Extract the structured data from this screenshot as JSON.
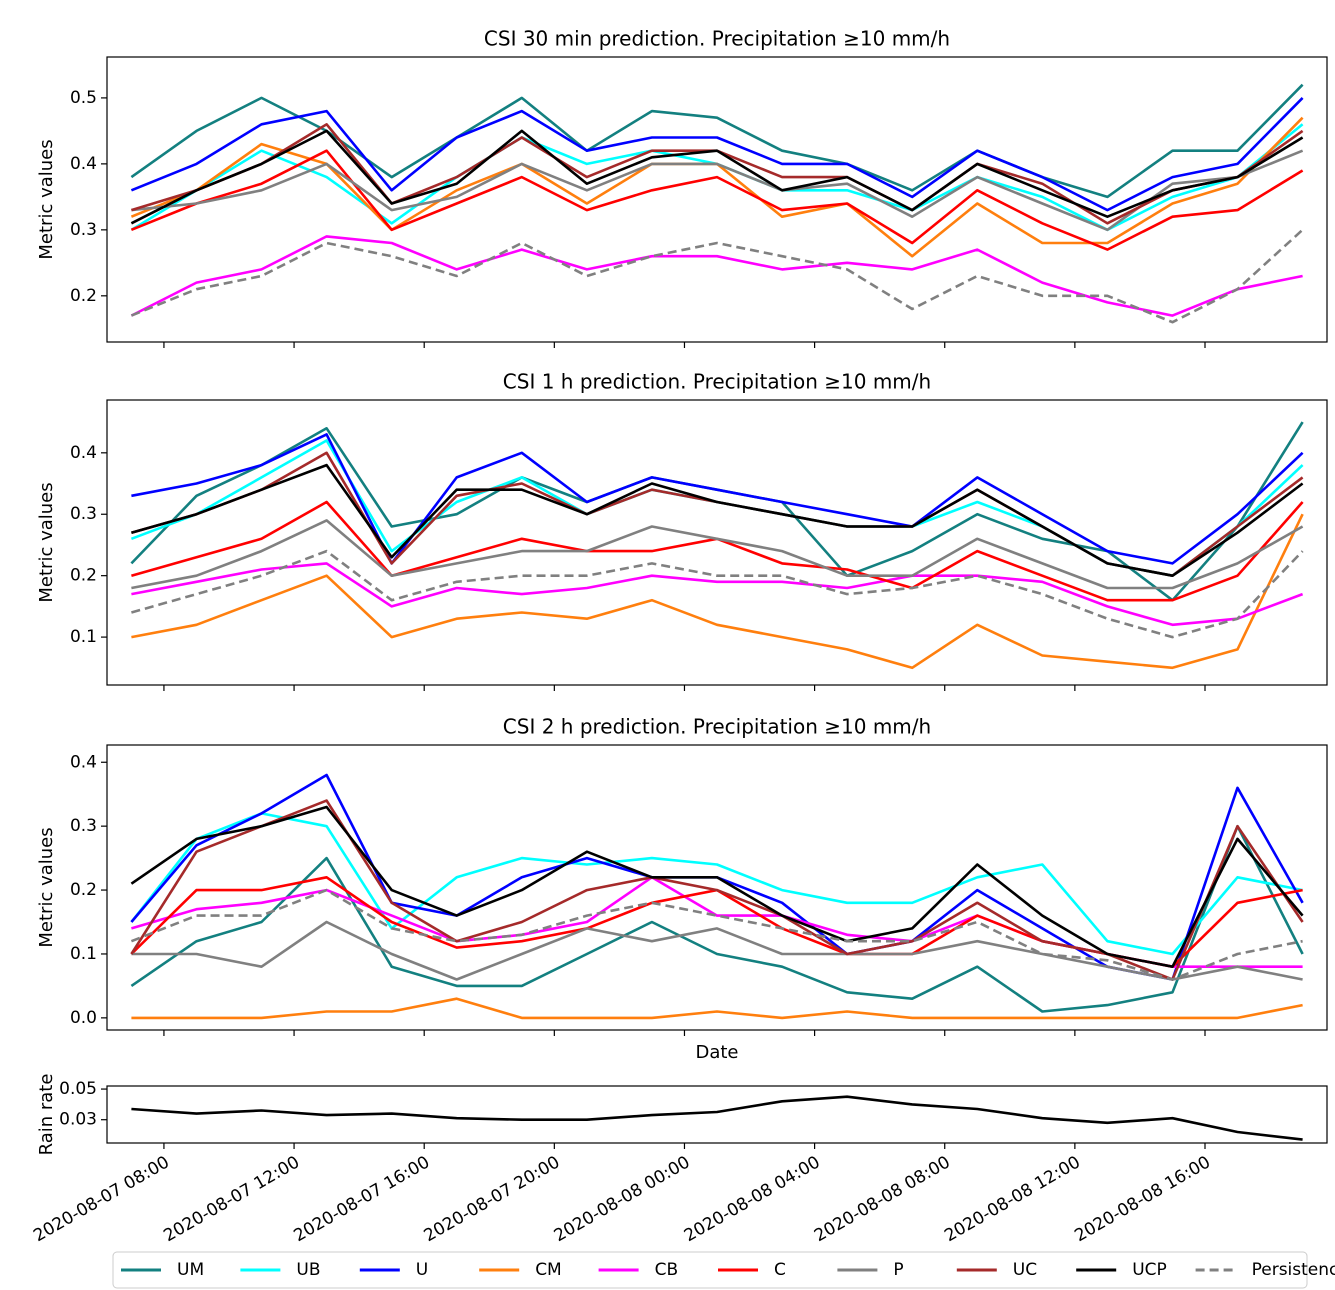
{
  "chart_data": [
    {
      "type": "line",
      "title": "CSI 30 min prediction. Precipitation  ≥10 mm/h",
      "ylabel": "Metric values",
      "legend": "bottom",
      "x": [
        "2020-08-07 07:00",
        "2020-08-07 09:00",
        "2020-08-07 11:00",
        "2020-08-07 13:00",
        "2020-08-07 15:00",
        "2020-08-07 17:00",
        "2020-08-07 19:00",
        "2020-08-07 21:00",
        "2020-08-07 23:00",
        "2020-08-08 01:00",
        "2020-08-08 03:00",
        "2020-08-08 05:00",
        "2020-08-08 07:00",
        "2020-08-08 09:00",
        "2020-08-08 11:00",
        "2020-08-08 13:00",
        "2020-08-08 15:00",
        "2020-08-08 17:00",
        "2020-08-08 19:00"
      ],
      "xlim": [
        "2020-08-07 06:15",
        "2020-08-08 19:45"
      ],
      "xticks": [
        "2020-08-07 08:00",
        "2020-08-07 12:00",
        "2020-08-07 16:00",
        "2020-08-07 20:00",
        "2020-08-08 00:00",
        "2020-08-08 04:00",
        "2020-08-08 08:00",
        "2020-08-08 12:00",
        "2020-08-08 16:00"
      ],
      "ylim": [
        0.13,
        0.562
      ],
      "yticks": [
        0.2,
        0.3,
        0.4,
        0.5
      ],
      "series": [
        {
          "name": "UM",
          "color": "#138080",
          "values": [
            0.38,
            0.45,
            0.5,
            0.45,
            0.38,
            0.44,
            0.5,
            0.42,
            0.48,
            0.47,
            0.42,
            0.4,
            0.36,
            0.42,
            0.38,
            0.35,
            0.42,
            0.42,
            0.52
          ]
        },
        {
          "name": "UB",
          "color": "#00ffff",
          "values": [
            0.3,
            0.36,
            0.42,
            0.38,
            0.31,
            0.38,
            0.44,
            0.4,
            0.42,
            0.4,
            0.36,
            0.36,
            0.33,
            0.38,
            0.35,
            0.3,
            0.35,
            0.38,
            0.46
          ]
        },
        {
          "name": "U",
          "color": "#0000ff",
          "values": [
            0.36,
            0.4,
            0.46,
            0.48,
            0.36,
            0.44,
            0.48,
            0.42,
            0.44,
            0.44,
            0.4,
            0.4,
            0.35,
            0.42,
            0.38,
            0.33,
            0.38,
            0.4,
            0.5
          ]
        },
        {
          "name": "CM",
          "color": "#ff7f0e",
          "values": [
            0.32,
            0.36,
            0.43,
            0.4,
            0.3,
            0.36,
            0.4,
            0.34,
            0.4,
            0.4,
            0.32,
            0.34,
            0.26,
            0.34,
            0.28,
            0.28,
            0.34,
            0.37,
            0.47
          ]
        },
        {
          "name": "CB",
          "color": "#ff00ff",
          "values": [
            0.17,
            0.22,
            0.24,
            0.29,
            0.28,
            0.24,
            0.27,
            0.24,
            0.26,
            0.26,
            0.24,
            0.25,
            0.24,
            0.27,
            0.22,
            0.19,
            0.17,
            0.21,
            0.23
          ]
        },
        {
          "name": "C",
          "color": "#ff0000",
          "values": [
            0.3,
            0.34,
            0.37,
            0.42,
            0.3,
            0.34,
            0.38,
            0.33,
            0.36,
            0.38,
            0.33,
            0.34,
            0.28,
            0.36,
            0.31,
            0.27,
            0.32,
            0.33,
            0.39
          ]
        },
        {
          "name": "P",
          "color": "#808080",
          "values": [
            0.33,
            0.34,
            0.36,
            0.4,
            0.33,
            0.35,
            0.4,
            0.36,
            0.4,
            0.4,
            0.36,
            0.37,
            0.32,
            0.38,
            0.34,
            0.3,
            0.37,
            0.38,
            0.42
          ]
        },
        {
          "name": "UC",
          "color": "#a52a2a",
          "values": [
            0.33,
            0.36,
            0.4,
            0.46,
            0.34,
            0.38,
            0.44,
            0.38,
            0.42,
            0.42,
            0.38,
            0.38,
            0.33,
            0.4,
            0.37,
            0.31,
            0.36,
            0.38,
            0.45
          ]
        },
        {
          "name": "UCP",
          "color": "#000000",
          "values": [
            0.31,
            0.36,
            0.4,
            0.45,
            0.34,
            0.37,
            0.45,
            0.37,
            0.41,
            0.42,
            0.36,
            0.38,
            0.33,
            0.4,
            0.36,
            0.32,
            0.36,
            0.38,
            0.44
          ]
        },
        {
          "name": "Persistence",
          "color": "#808080",
          "linestyle": "dashed",
          "values": [
            0.17,
            0.21,
            0.23,
            0.28,
            0.26,
            0.23,
            0.28,
            0.23,
            0.26,
            0.28,
            0.26,
            0.24,
            0.18,
            0.23,
            0.2,
            0.2,
            0.16,
            0.21,
            0.3
          ]
        }
      ]
    },
    {
      "type": "line",
      "title": "CSI 1 h prediction. Precipitation  ≥10 mm/h",
      "ylabel": "Metric values",
      "x": [
        "2020-08-07 07:00",
        "2020-08-07 09:00",
        "2020-08-07 11:00",
        "2020-08-07 13:00",
        "2020-08-07 15:00",
        "2020-08-07 17:00",
        "2020-08-07 19:00",
        "2020-08-07 21:00",
        "2020-08-07 23:00",
        "2020-08-08 01:00",
        "2020-08-08 03:00",
        "2020-08-08 05:00",
        "2020-08-08 07:00",
        "2020-08-08 09:00",
        "2020-08-08 11:00",
        "2020-08-08 13:00",
        "2020-08-08 15:00",
        "2020-08-08 17:00",
        "2020-08-08 19:00"
      ],
      "xlim": [
        "2020-08-07 06:15",
        "2020-08-08 19:45"
      ],
      "xticks": [
        "2020-08-07 08:00",
        "2020-08-07 12:00",
        "2020-08-07 16:00",
        "2020-08-07 20:00",
        "2020-08-08 00:00",
        "2020-08-08 04:00",
        "2020-08-08 08:00",
        "2020-08-08 12:00",
        "2020-08-08 16:00"
      ],
      "ylim": [
        0.022,
        0.486
      ],
      "yticks": [
        0.1,
        0.2,
        0.3,
        0.4
      ],
      "series": [
        {
          "name": "UM",
          "color": "#138080",
          "values": [
            0.22,
            0.33,
            0.38,
            0.44,
            0.28,
            0.3,
            0.36,
            0.32,
            0.36,
            0.34,
            0.32,
            0.2,
            0.24,
            0.3,
            0.26,
            0.24,
            0.16,
            0.28,
            0.45
          ]
        },
        {
          "name": "UB",
          "color": "#00ffff",
          "values": [
            0.26,
            0.3,
            0.36,
            0.42,
            0.24,
            0.32,
            0.36,
            0.3,
            0.34,
            0.32,
            0.3,
            0.28,
            0.28,
            0.32,
            0.28,
            0.22,
            0.2,
            0.28,
            0.38
          ]
        },
        {
          "name": "U",
          "color": "#0000ff",
          "values": [
            0.33,
            0.35,
            0.38,
            0.43,
            0.22,
            0.36,
            0.4,
            0.32,
            0.36,
            0.34,
            0.32,
            0.3,
            0.28,
            0.36,
            0.3,
            0.24,
            0.22,
            0.3,
            0.4
          ]
        },
        {
          "name": "CM",
          "color": "#ff7f0e",
          "values": [
            0.1,
            0.12,
            0.16,
            0.2,
            0.1,
            0.13,
            0.14,
            0.13,
            0.16,
            0.12,
            0.1,
            0.08,
            0.05,
            0.12,
            0.07,
            0.06,
            0.05,
            0.08,
            0.3
          ]
        },
        {
          "name": "CB",
          "color": "#ff00ff",
          "values": [
            0.17,
            0.19,
            0.21,
            0.22,
            0.15,
            0.18,
            0.17,
            0.18,
            0.2,
            0.19,
            0.19,
            0.18,
            0.2,
            0.2,
            0.19,
            0.15,
            0.12,
            0.13,
            0.17
          ]
        },
        {
          "name": "C",
          "color": "#ff0000",
          "values": [
            0.2,
            0.23,
            0.26,
            0.32,
            0.2,
            0.23,
            0.26,
            0.24,
            0.24,
            0.26,
            0.22,
            0.21,
            0.18,
            0.24,
            0.2,
            0.16,
            0.16,
            0.2,
            0.32
          ]
        },
        {
          "name": "P",
          "color": "#808080",
          "values": [
            0.18,
            0.2,
            0.24,
            0.29,
            0.2,
            0.22,
            0.24,
            0.24,
            0.28,
            0.26,
            0.24,
            0.2,
            0.2,
            0.26,
            0.22,
            0.18,
            0.18,
            0.22,
            0.28
          ]
        },
        {
          "name": "UC",
          "color": "#a52a2a",
          "values": [
            0.27,
            0.3,
            0.34,
            0.4,
            0.22,
            0.33,
            0.35,
            0.3,
            0.34,
            0.32,
            0.3,
            0.28,
            0.28,
            0.34,
            0.28,
            0.22,
            0.2,
            0.28,
            0.36
          ]
        },
        {
          "name": "UCP",
          "color": "#000000",
          "values": [
            0.27,
            0.3,
            0.34,
            0.38,
            0.23,
            0.34,
            0.34,
            0.3,
            0.35,
            0.32,
            0.3,
            0.28,
            0.28,
            0.34,
            0.28,
            0.22,
            0.2,
            0.27,
            0.35
          ]
        },
        {
          "name": "Persistence",
          "color": "#808080",
          "linestyle": "dashed",
          "values": [
            0.14,
            0.17,
            0.2,
            0.24,
            0.16,
            0.19,
            0.2,
            0.2,
            0.22,
            0.2,
            0.2,
            0.17,
            0.18,
            0.2,
            0.17,
            0.13,
            0.1,
            0.13,
            0.24
          ]
        }
      ]
    },
    {
      "type": "line",
      "title": "CSI 2 h prediction. Precipitation  ≥10 mm/h",
      "ylabel": "Metric values",
      "xlabel": "Date",
      "x": [
        "2020-08-07 07:00",
        "2020-08-07 09:00",
        "2020-08-07 11:00",
        "2020-08-07 13:00",
        "2020-08-07 15:00",
        "2020-08-07 17:00",
        "2020-08-07 19:00",
        "2020-08-07 21:00",
        "2020-08-07 23:00",
        "2020-08-08 01:00",
        "2020-08-08 03:00",
        "2020-08-08 05:00",
        "2020-08-08 07:00",
        "2020-08-08 09:00",
        "2020-08-08 11:00",
        "2020-08-08 13:00",
        "2020-08-08 15:00",
        "2020-08-08 17:00",
        "2020-08-08 19:00"
      ],
      "xlim": [
        "2020-08-07 06:15",
        "2020-08-08 19:45"
      ],
      "xticks": [
        "2020-08-07 08:00",
        "2020-08-07 12:00",
        "2020-08-07 16:00",
        "2020-08-07 20:00",
        "2020-08-08 00:00",
        "2020-08-08 04:00",
        "2020-08-08 08:00",
        "2020-08-08 12:00",
        "2020-08-08 16:00"
      ],
      "ylim": [
        -0.019,
        0.427
      ],
      "yticks": [
        {
          "value": 0,
          "label": "0.0"
        },
        0.1,
        0.2,
        0.3,
        0.4
      ],
      "series": [
        {
          "name": "UM",
          "color": "#138080",
          "values": [
            0.05,
            0.12,
            0.15,
            0.25,
            0.08,
            0.05,
            0.05,
            0.1,
            0.15,
            0.1,
            0.08,
            0.04,
            0.03,
            0.08,
            0.01,
            0.02,
            0.04,
            0.3,
            0.1
          ]
        },
        {
          "name": "UB",
          "color": "#00ffff",
          "values": [
            0.15,
            0.28,
            0.32,
            0.3,
            0.14,
            0.22,
            0.25,
            0.24,
            0.25,
            0.24,
            0.2,
            0.18,
            0.18,
            0.22,
            0.24,
            0.12,
            0.1,
            0.22,
            0.2
          ]
        },
        {
          "name": "U",
          "color": "#0000ff",
          "values": [
            0.15,
            0.27,
            0.32,
            0.38,
            0.18,
            0.16,
            0.22,
            0.25,
            0.22,
            0.22,
            0.18,
            0.1,
            0.12,
            0.2,
            0.14,
            0.08,
            0.06,
            0.36,
            0.18
          ]
        },
        {
          "name": "CM",
          "color": "#ff7f0e",
          "values": [
            0,
            0,
            0,
            0.01,
            0.01,
            0.03,
            0,
            0,
            0,
            0.01,
            0,
            0.01,
            0,
            0,
            0,
            0,
            0,
            0,
            0.02
          ]
        },
        {
          "name": "CB",
          "color": "#ff00ff",
          "values": [
            0.14,
            0.17,
            0.18,
            0.2,
            0.16,
            0.12,
            0.13,
            0.15,
            0.22,
            0.16,
            0.16,
            0.13,
            0.12,
            0.16,
            0.12,
            0.1,
            0.08,
            0.08,
            0.08
          ]
        },
        {
          "name": "C",
          "color": "#ff0000",
          "values": [
            0.1,
            0.2,
            0.2,
            0.22,
            0.15,
            0.11,
            0.12,
            0.14,
            0.18,
            0.2,
            0.14,
            0.1,
            0.1,
            0.16,
            0.12,
            0.1,
            0.08,
            0.18,
            0.2
          ]
        },
        {
          "name": "P",
          "color": "#808080",
          "values": [
            0.1,
            0.1,
            0.08,
            0.15,
            0.1,
            0.06,
            0.1,
            0.14,
            0.12,
            0.14,
            0.1,
            0.1,
            0.1,
            0.12,
            0.1,
            0.08,
            0.06,
            0.08,
            0.06
          ]
        },
        {
          "name": "UC",
          "color": "#a52a2a",
          "values": [
            0.1,
            0.26,
            0.3,
            0.34,
            0.18,
            0.12,
            0.15,
            0.2,
            0.22,
            0.2,
            0.16,
            0.1,
            0.12,
            0.18,
            0.12,
            0.1,
            0.06,
            0.3,
            0.15
          ]
        },
        {
          "name": "UCP",
          "color": "#000000",
          "values": [
            0.21,
            0.28,
            0.3,
            0.33,
            0.2,
            0.16,
            0.2,
            0.26,
            0.22,
            0.22,
            0.16,
            0.12,
            0.14,
            0.24,
            0.16,
            0.1,
            0.08,
            0.28,
            0.16
          ]
        },
        {
          "name": "Persistence",
          "color": "#808080",
          "linestyle": "dashed",
          "values": [
            0.12,
            0.16,
            0.16,
            0.2,
            0.14,
            0.12,
            0.13,
            0.16,
            0.18,
            0.16,
            0.14,
            0.12,
            0.12,
            0.15,
            0.1,
            0.09,
            0.06,
            0.1,
            0.12
          ]
        }
      ]
    },
    {
      "type": "line",
      "ylabel": "Rain rate",
      "color": "#000000",
      "x": [
        "2020-08-07 07:00",
        "2020-08-07 09:00",
        "2020-08-07 11:00",
        "2020-08-07 13:00",
        "2020-08-07 15:00",
        "2020-08-07 17:00",
        "2020-08-07 19:00",
        "2020-08-07 21:00",
        "2020-08-07 23:00",
        "2020-08-08 01:00",
        "2020-08-08 03:00",
        "2020-08-08 05:00",
        "2020-08-08 07:00",
        "2020-08-08 09:00",
        "2020-08-08 11:00",
        "2020-08-08 13:00",
        "2020-08-08 15:00",
        "2020-08-08 17:00",
        "2020-08-08 19:00"
      ],
      "xlim": [
        "2020-08-07 06:15",
        "2020-08-08 19:45"
      ],
      "xticks": [
        "2020-08-07 08:00",
        "2020-08-07 12:00",
        "2020-08-07 16:00",
        "2020-08-07 20:00",
        "2020-08-08 00:00",
        "2020-08-08 04:00",
        "2020-08-08 08:00",
        "2020-08-08 12:00",
        "2020-08-08 16:00"
      ],
      "ylim": [
        0.0148,
        0.052
      ],
      "yticks": [
        0.03,
        0.05
      ],
      "values": [
        0.037,
        0.034,
        0.036,
        0.033,
        0.034,
        0.031,
        0.03,
        0.03,
        0.033,
        0.035,
        0.042,
        0.045,
        0.04,
        0.037,
        0.031,
        0.028,
        0.031,
        0.022,
        0.017
      ]
    }
  ]
}
